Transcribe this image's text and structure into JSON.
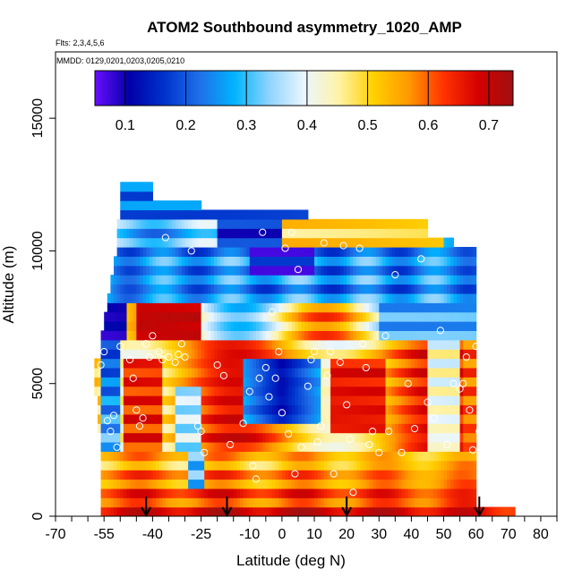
{
  "header": {
    "title": "ATOM2 Southbound asymmetry_1020_AMP",
    "flights": "Flts: 2,3,4,5,6",
    "dates": "MMDD: 0129,0201,0203,0205,0210"
  },
  "colors": {
    "scale": [
      "#6a0dff",
      "#0000a8",
      "#0033cc",
      "#1f6fe8",
      "#00b4ff",
      "#8fd3ff",
      "#eaf6ff",
      "#fff3a8",
      "#ffd000",
      "#ff9900",
      "#ff3300",
      "#d40000",
      "#a01010"
    ],
    "marker": "#ffffff",
    "arrow": "#000000"
  },
  "chart_data": {
    "type": "heatmap",
    "title": "ATOM2 Southbound asymmetry_1020_AMP",
    "xlabel": "Latitude (deg N)",
    "ylabel": "Altitude (m)",
    "xlim": [
      -70,
      85
    ],
    "ylim": [
      0,
      17500
    ],
    "xticks": [
      -70,
      -55,
      -40,
      -25,
      -10,
      0,
      10,
      20,
      30,
      40,
      50,
      60,
      70,
      80
    ],
    "xtick_labels": [
      "-70",
      "-55",
      "-40",
      "-25",
      "-10",
      "0",
      "10",
      "20",
      "30",
      "40",
      "50",
      "60",
      "70",
      "80"
    ],
    "xminor_step": 5,
    "yticks": [
      0,
      5000,
      10000,
      15000
    ],
    "ytick_labels": [
      "0",
      "5000",
      "10000",
      "15000"
    ],
    "colorbar": {
      "range": [
        0.05,
        0.74
      ],
      "ticks": [
        0.1,
        0.2,
        0.3,
        0.4,
        0.5,
        0.6,
        0.7
      ],
      "tick_labels": [
        "0.1",
        "0.2",
        "0.3",
        "0.4",
        "0.5",
        "0.6",
        "0.7"
      ]
    },
    "arrows_lat": [
      -42,
      -17,
      20,
      61
    ],
    "observations": [
      [
        -56,
        5700
      ],
      [
        -55,
        6200
      ],
      [
        -54,
        3600
      ],
      [
        -53,
        3200
      ],
      [
        -52,
        3800
      ],
      [
        -51,
        2600
      ],
      [
        -50,
        6400
      ],
      [
        -47,
        5900
      ],
      [
        -46,
        5200
      ],
      [
        -45,
        4000
      ],
      [
        -44,
        3400
      ],
      [
        -43,
        3700
      ],
      [
        -42,
        6500
      ],
      [
        -41,
        6000
      ],
      [
        -40,
        6800
      ],
      [
        -38,
        6200
      ],
      [
        -37,
        5900
      ],
      [
        -36,
        10500
      ],
      [
        -35,
        6000
      ],
      [
        -33,
        5800
      ],
      [
        -32,
        6100
      ],
      [
        -31,
        6500
      ],
      [
        -30,
        6000
      ],
      [
        -28,
        10000
      ],
      [
        -26,
        3400
      ],
      [
        -25,
        3200
      ],
      [
        -24,
        2400
      ],
      [
        -20,
        5700
      ],
      [
        -18,
        5300
      ],
      [
        -16,
        2700
      ],
      [
        -12,
        3500
      ],
      [
        -10,
        4700
      ],
      [
        -9,
        1900
      ],
      [
        -8,
        1400
      ],
      [
        -7,
        5200
      ],
      [
        -6,
        10700
      ],
      [
        -5,
        5600
      ],
      [
        -4,
        4500
      ],
      [
        -3,
        7700
      ],
      [
        -2,
        5200
      ],
      [
        -1,
        6200
      ],
      [
        0,
        3900
      ],
      [
        1,
        10100
      ],
      [
        2,
        3100
      ],
      [
        3,
        10700
      ],
      [
        4,
        1600
      ],
      [
        5,
        9300
      ],
      [
        6,
        2600
      ],
      [
        8,
        4900
      ],
      [
        9,
        5900
      ],
      [
        10,
        6200
      ],
      [
        11,
        2800
      ],
      [
        12,
        3400
      ],
      [
        13,
        10300
      ],
      [
        14,
        5300
      ],
      [
        15,
        6200
      ],
      [
        16,
        1600
      ],
      [
        18,
        5800
      ],
      [
        19,
        10200
      ],
      [
        20,
        4200
      ],
      [
        21,
        2900
      ],
      [
        22,
        900
      ],
      [
        24,
        10100
      ],
      [
        25,
        6500
      ],
      [
        26,
        5600
      ],
      [
        27,
        2700
      ],
      [
        28,
        3200
      ],
      [
        30,
        2400
      ],
      [
        32,
        6800
      ],
      [
        33,
        3200
      ],
      [
        35,
        9100
      ],
      [
        37,
        2400
      ],
      [
        39,
        5000
      ],
      [
        41,
        3300
      ],
      [
        43,
        9700
      ],
      [
        45,
        4300
      ],
      [
        47,
        3700
      ],
      [
        49,
        7000
      ],
      [
        51,
        2700
      ],
      [
        53,
        5000
      ],
      [
        55,
        4800
      ],
      [
        56,
        5000
      ],
      [
        57,
        6000
      ],
      [
        58,
        4000
      ],
      [
        59,
        2500
      ],
      [
        60,
        6400
      ],
      [
        61,
        3200
      ],
      [
        62,
        5700
      ]
    ]
  }
}
